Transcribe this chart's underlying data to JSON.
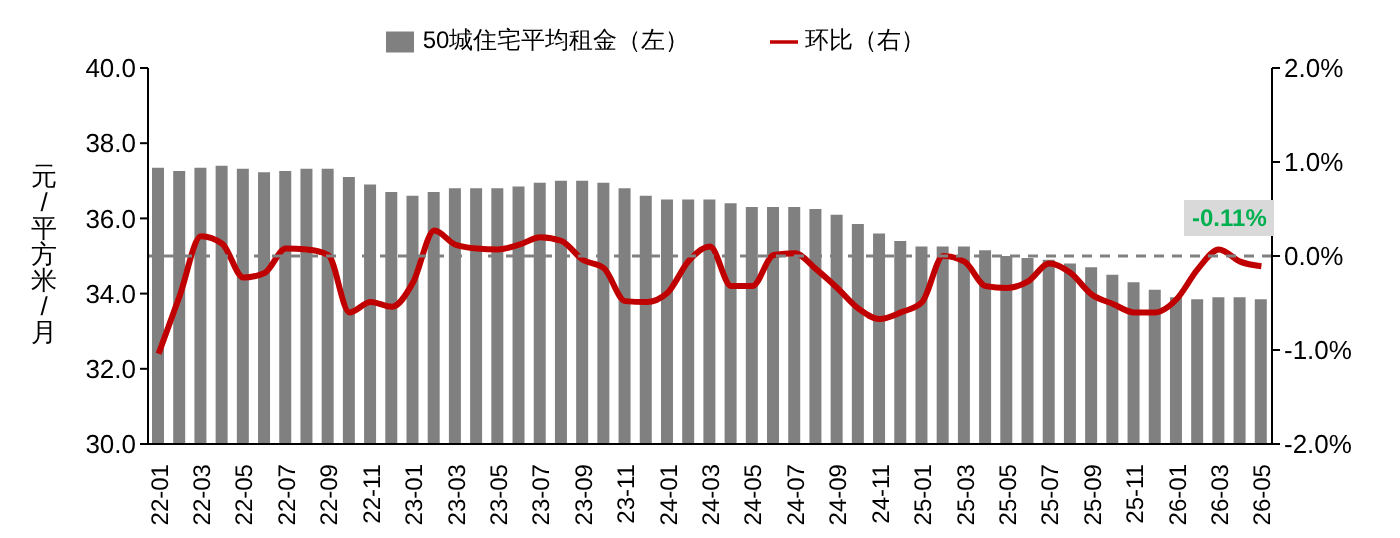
{
  "chart_data": {
    "type": "bar",
    "ylabel": "元/平方米/月",
    "categories": [
      "22-01",
      null,
      "22-03",
      null,
      "22-05",
      null,
      "22-07",
      null,
      "22-09",
      null,
      "22-11",
      null,
      "23-01",
      null,
      "23-03",
      null,
      "23-05",
      null,
      "23-07",
      null,
      "23-09",
      null,
      "23-11",
      null,
      "24-01",
      null,
      "24-03",
      null,
      "24-05",
      null,
      "24-07",
      null,
      "24-09",
      null,
      "24-11",
      null,
      "25-01",
      null,
      "25-03",
      null,
      "25-05",
      null,
      "25-07",
      null,
      "25-09",
      null,
      "25-11",
      null,
      "26-01",
      null,
      "26-03",
      null,
      "26-05"
    ],
    "series": [
      {
        "name": "50城住宅平均租金（左）",
        "color": "#808080",
        "values": [
          37.35,
          37.26,
          37.35,
          37.4,
          37.32,
          37.23,
          37.26,
          37.32,
          37.32,
          37.1,
          36.9,
          36.7,
          36.6,
          36.7,
          36.8,
          36.8,
          36.8,
          36.85,
          36.95,
          37.0,
          37.0,
          36.95,
          36.8,
          36.6,
          36.5,
          36.5,
          36.5,
          36.4,
          36.3,
          36.3,
          36.3,
          36.25,
          36.1,
          35.85,
          35.6,
          35.4,
          35.25,
          35.25,
          35.25,
          35.15,
          35.0,
          34.95,
          34.9,
          34.8,
          34.7,
          34.5,
          34.3,
          34.1,
          33.9,
          33.85,
          33.9,
          33.9,
          33.85
        ]
      },
      {
        "name": "环比（右）",
        "type": "line",
        "axis": "y2",
        "color": "#c00000",
        "values": [
          -1.04,
          -0.42,
          0.21,
          0.13,
          -0.23,
          -0.18,
          0.08,
          0.07,
          0.01,
          -0.6,
          -0.49,
          -0.54,
          -0.28,
          0.27,
          0.12,
          0.08,
          0.07,
          0.12,
          0.2,
          0.16,
          -0.04,
          -0.13,
          -0.48,
          -0.49,
          -0.39,
          -0.05,
          0.1,
          -0.32,
          -0.32,
          0.01,
          0.03,
          -0.14,
          -0.34,
          -0.56,
          -0.67,
          -0.6,
          -0.49,
          0.0,
          -0.06,
          -0.32,
          -0.34,
          -0.27,
          -0.08,
          -0.18,
          -0.41,
          -0.51,
          -0.6,
          -0.6,
          -0.46,
          -0.14,
          0.07,
          -0.06,
          -0.11
        ]
      }
    ],
    "ylim": [
      30,
      40
    ],
    "yticks": [
      {
        "value": 30,
        "label": "30.0"
      },
      {
        "value": 32,
        "label": "32.0"
      },
      {
        "value": 34,
        "label": "34.0"
      },
      {
        "value": 36,
        "label": "36.0"
      },
      {
        "value": 38,
        "label": "38.0"
      },
      {
        "value": 40,
        "label": "40.0"
      }
    ],
    "y2lim": [
      -2,
      2
    ],
    "y2ticks": [
      {
        "value": -2,
        "label": "-2.0%"
      },
      {
        "value": -1,
        "label": "-1.0%"
      },
      {
        "value": 0,
        "label": "0.0%"
      },
      {
        "value": 1,
        "label": "1.0%"
      },
      {
        "value": 2,
        "label": "2.0%"
      }
    ],
    "ref_lines": [
      {
        "axis": "y2",
        "value": 0,
        "color": "#808080",
        "line_style": "dashed"
      }
    ],
    "annotations": [
      "-0.11%"
    ],
    "legend": "top",
    "marker": "none",
    "line_style": "solid"
  }
}
